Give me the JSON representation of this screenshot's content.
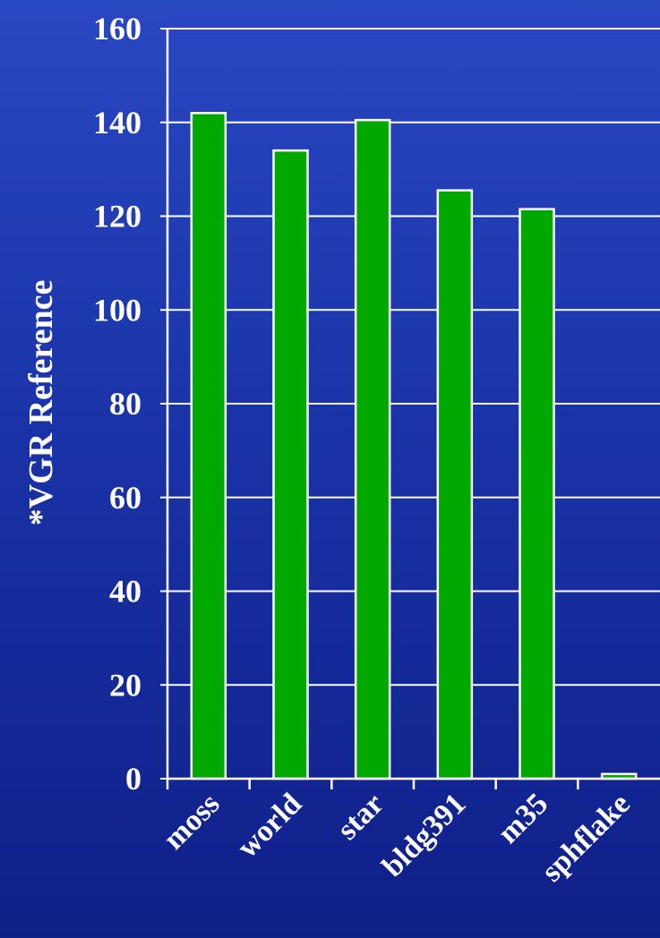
{
  "chart_data": {
    "type": "bar",
    "categories": [
      "moss",
      "world",
      "star",
      "bldg391",
      "m35",
      "sphflake"
    ],
    "values": [
      142,
      134,
      140.5,
      125.5,
      121.5,
      1
    ],
    "title": "",
    "xlabel": "",
    "ylabel": "*VGR Reference",
    "ylim": [
      0,
      160
    ],
    "yticks": [
      "0",
      "20",
      "40",
      "60",
      "80",
      "100",
      "120",
      "140",
      "160"
    ],
    "grid": true,
    "legend": "none",
    "colors": {
      "bar_fill": "#00a800",
      "bar_stroke": "#ffffff",
      "grid": "#ffffff",
      "text": "#ffffff"
    }
  }
}
